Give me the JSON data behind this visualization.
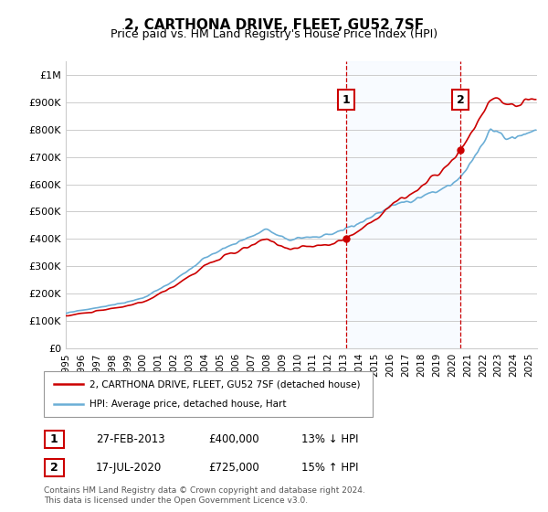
{
  "title": "2, CARTHONA DRIVE, FLEET, GU52 7SF",
  "subtitle": "Price paid vs. HM Land Registry's House Price Index (HPI)",
  "ylabel_vals": [
    "£0",
    "£100K",
    "£200K",
    "£300K",
    "£400K",
    "£500K",
    "£600K",
    "£700K",
    "£800K",
    "£900K",
    "£1M"
  ],
  "yticks": [
    0,
    100000,
    200000,
    300000,
    400000,
    500000,
    600000,
    700000,
    800000,
    900000,
    1000000
  ],
  "ylim": [
    0,
    1050000
  ],
  "xlim_start": 1995.0,
  "xlim_end": 2025.5,
  "sale1_date": 2013.15,
  "sale1_price": 400000,
  "sale1_label": "1",
  "sale2_date": 2020.54,
  "sale2_price": 725000,
  "sale2_label": "2",
  "vline1_x": 2013.15,
  "vline2_x": 2020.54,
  "legend_line1": "2, CARTHONA DRIVE, FLEET, GU52 7SF (detached house)",
  "legend_line2": "HPI: Average price, detached house, Hart",
  "table_row1_num": "1",
  "table_row1_date": "27-FEB-2013",
  "table_row1_price": "£400,000",
  "table_row1_hpi": "13% ↓ HPI",
  "table_row2_num": "2",
  "table_row2_date": "17-JUL-2020",
  "table_row2_price": "£725,000",
  "table_row2_hpi": "15% ↑ HPI",
  "footer": "Contains HM Land Registry data © Crown copyright and database right 2024.\nThis data is licensed under the Open Government Licence v3.0.",
  "hpi_color": "#6baed6",
  "price_color": "#cc0000",
  "vline_color": "#cc0000",
  "shade_color": "#ddeeff",
  "bg_color": "#f5f5f5"
}
